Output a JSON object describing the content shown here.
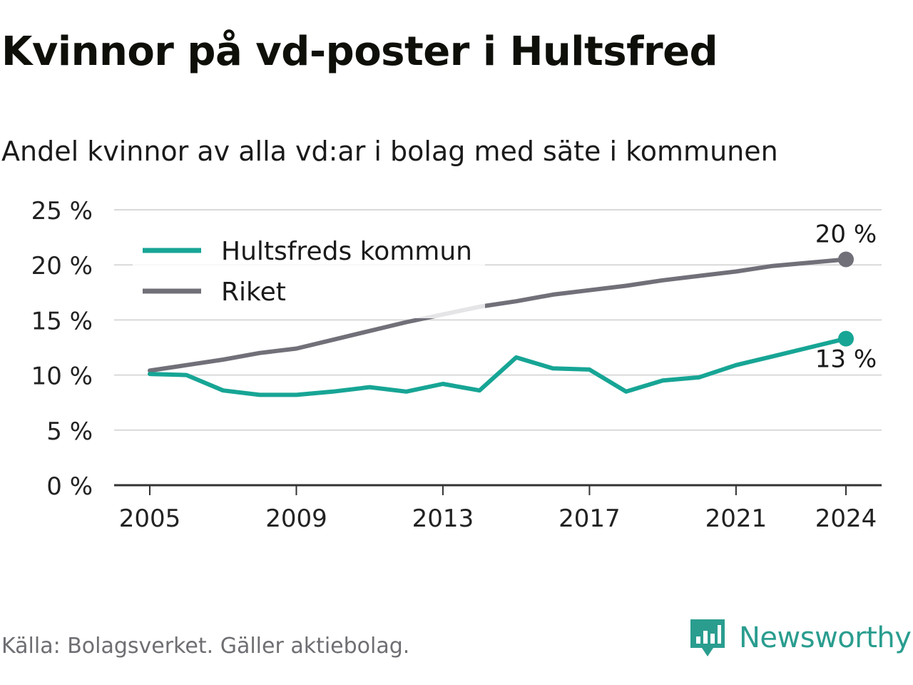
{
  "header": {
    "title": "Kvinnor på vd-poster i Hultsfred",
    "subtitle": "Andel kvinnor av alla vd:ar i bolag med säte i kommunen"
  },
  "footer": {
    "source": "Källa: Bolagsverket. Gäller aktiebolag.",
    "brand": "Newsworthy"
  },
  "colors": {
    "hultsfred": "#17a595",
    "riket": "#717079",
    "grid": "#d9d9d9",
    "axis": "#333333",
    "brand": "#2a9d8f"
  },
  "chart_data": {
    "type": "line",
    "x": [
      2005,
      2006,
      2007,
      2008,
      2009,
      2010,
      2011,
      2012,
      2013,
      2014,
      2015,
      2016,
      2017,
      2018,
      2019,
      2020,
      2021,
      2022,
      2023,
      2024
    ],
    "x_ticks": [
      2005,
      2009,
      2013,
      2017,
      2021,
      2024
    ],
    "y_ticks": [
      0,
      5,
      10,
      15,
      20,
      25
    ],
    "y_tick_labels": [
      "0 %",
      "5 %",
      "10 %",
      "15 %",
      "20 %",
      "25 %"
    ],
    "ylim": [
      0,
      25
    ],
    "xlim": [
      2004,
      2025
    ],
    "grid": true,
    "legend_position": "top-left",
    "series": [
      {
        "name": "Hultsfreds kommun",
        "color": "#17a595",
        "values": [
          10.1,
          10.0,
          8.6,
          8.2,
          8.2,
          8.5,
          8.9,
          8.5,
          9.2,
          8.6,
          11.6,
          10.6,
          10.5,
          8.5,
          9.5,
          9.8,
          10.9,
          11.7,
          12.5,
          13.3
        ],
        "end_label": "13 %"
      },
      {
        "name": "Riket",
        "color": "#717079",
        "values": [
          10.4,
          10.9,
          11.4,
          12.0,
          12.4,
          13.2,
          14.0,
          14.8,
          15.5,
          16.2,
          16.7,
          17.3,
          17.7,
          18.1,
          18.6,
          19.0,
          19.4,
          19.9,
          20.2,
          20.5
        ],
        "end_label": "20 %"
      }
    ]
  }
}
